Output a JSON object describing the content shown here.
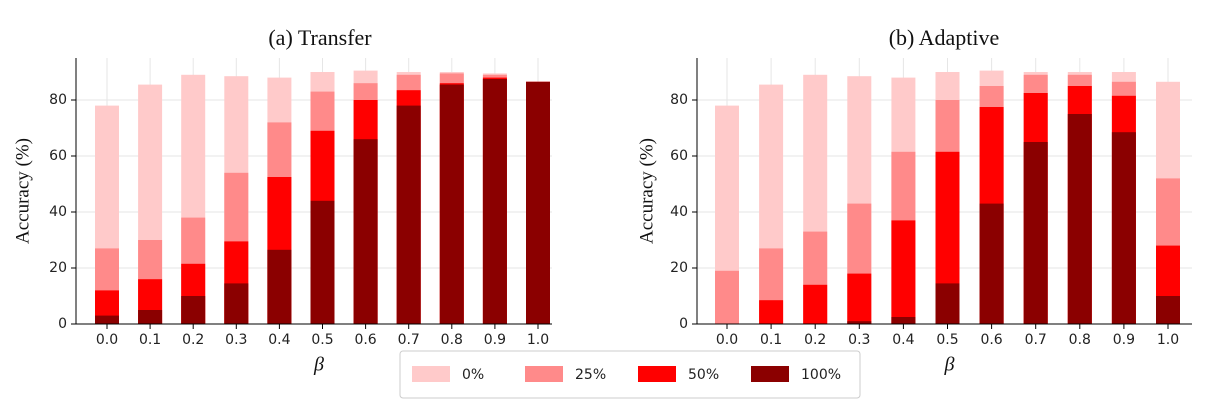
{
  "chart_data": [
    {
      "type": "bar",
      "title": "(a) Transfer",
      "xlabel": "β",
      "ylabel": "Accuracy (%)",
      "categories": [
        "0.0",
        "0.1",
        "0.2",
        "0.3",
        "0.4",
        "0.5",
        "0.6",
        "0.7",
        "0.8",
        "0.9",
        "1.0"
      ],
      "series": [
        {
          "name": "0%",
          "color": "#ffcaca",
          "values": [
            78,
            85.5,
            89,
            88.5,
            88,
            90,
            90.5,
            90,
            90,
            89.5,
            86.5
          ]
        },
        {
          "name": "25%",
          "color": "#ff8a8a",
          "values": [
            27,
            30,
            38,
            54,
            72,
            83,
            86,
            89,
            89.5,
            89,
            86.5
          ]
        },
        {
          "name": "50%",
          "color": "#ff0000",
          "values": [
            12,
            16,
            21.5,
            29.5,
            52.5,
            69,
            80,
            83.5,
            86,
            88,
            86.5
          ]
        },
        {
          "name": "100%",
          "color": "#8b0000",
          "values": [
            3,
            5,
            10,
            14.5,
            26.5,
            44,
            66,
            78,
            85.5,
            87.5,
            86.5
          ]
        }
      ],
      "ylim": [
        0,
        95
      ],
      "yticks": [
        0,
        20,
        40,
        60,
        80
      ],
      "grid": true,
      "legend": "lower center"
    },
    {
      "type": "bar",
      "title": "(b) Adaptive",
      "xlabel": "β",
      "ylabel": "Accuracy (%)",
      "categories": [
        "0.0",
        "0.1",
        "0.2",
        "0.3",
        "0.4",
        "0.5",
        "0.6",
        "0.7",
        "0.8",
        "0.9",
        "1.0"
      ],
      "series": [
        {
          "color": "#ffcaca",
          "values": [
            78,
            85.5,
            89,
            88.5,
            88,
            90,
            90.5,
            90,
            90,
            90,
            86.5
          ]
        },
        {
          "color": "#ff8a8a",
          "values": [
            19,
            27,
            33,
            43,
            61.5,
            80,
            85,
            89,
            89,
            86.5,
            52
          ]
        },
        {
          "color": "#ff0000",
          "values": [
            0,
            8.5,
            14,
            18,
            37,
            61.5,
            77.5,
            82.5,
            85,
            81.5,
            28
          ]
        },
        {
          "color": "#8b0000",
          "values": [
            0,
            0,
            0,
            1,
            2.5,
            14.5,
            43,
            65,
            75,
            68.5,
            10
          ]
        }
      ],
      "ylim": [
        0,
        95
      ],
      "yticks": [
        0,
        20,
        40,
        60,
        80
      ],
      "grid": true
    }
  ]
}
